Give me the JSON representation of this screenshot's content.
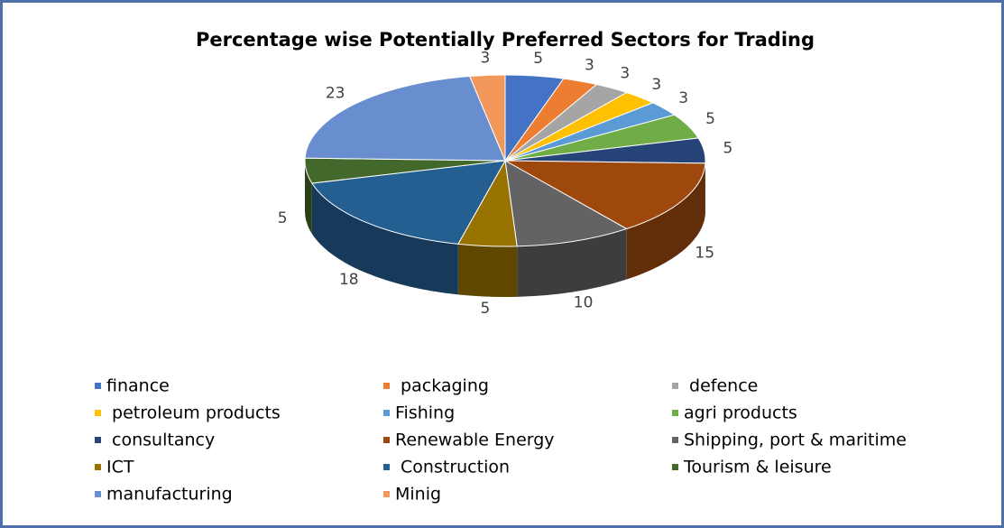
{
  "chart_data": {
    "type": "pie",
    "title": "Percentage wise Potentially Preferred Sectors for Trading",
    "categories": [
      "finance",
      " packaging",
      " defence",
      " petroleum products",
      "Fishing",
      "agri products",
      " consultancy",
      "Renewable Energy",
      "Shipping, port & maritime",
      "ICT",
      " Construction",
      "Tourism & leisure",
      "manufacturing",
      "Minig"
    ],
    "values": [
      5,
      3,
      3,
      3,
      3,
      5,
      5,
      15,
      10,
      5,
      18,
      5,
      23,
      3
    ],
    "colors": [
      "#4472c4",
      "#ed7d31",
      "#a5a5a5",
      "#ffc000",
      "#5b9bd5",
      "#70ad47",
      "#264478",
      "#9e480e",
      "#636363",
      "#997300",
      "#255e91",
      "#43682b",
      "#698ed0",
      "#f1975a"
    ],
    "legend": "bottom"
  }
}
